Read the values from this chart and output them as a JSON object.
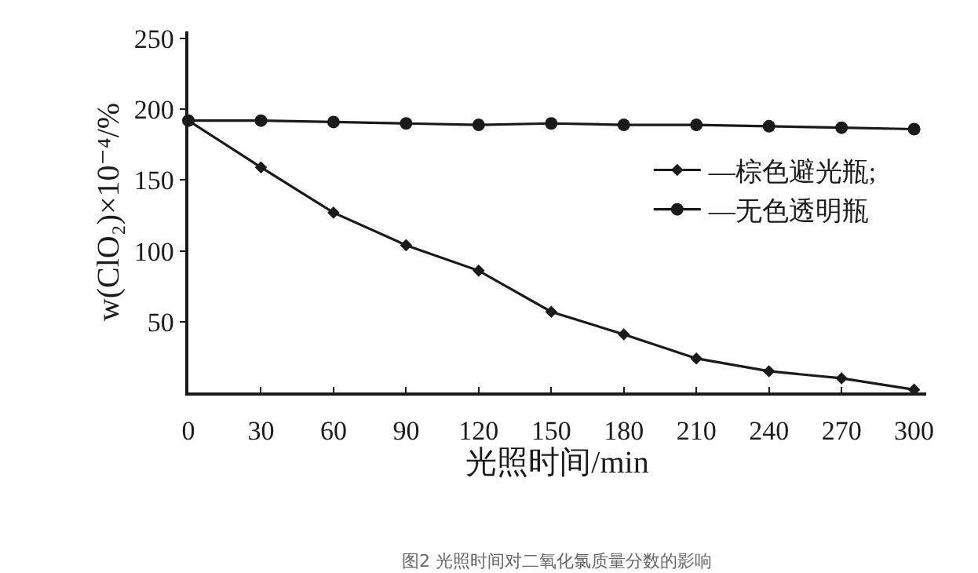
{
  "chart_data": {
    "type": "line",
    "xlabel": "光照时间/min",
    "ylabel": "w(ClO₂)×10⁻⁴/%",
    "x": [
      0,
      30,
      60,
      90,
      120,
      150,
      180,
      210,
      240,
      270,
      300
    ],
    "series": [
      {
        "name": "—棕色避光瓶;",
        "color": "#1a1a1a",
        "marker": "diamond",
        "values": [
          192,
          159,
          127,
          104,
          86,
          57,
          41,
          24,
          15,
          10,
          2
        ]
      },
      {
        "name": "—无色透明瓶",
        "color": "#1a1a1a",
        "marker": "circle",
        "values": [
          192,
          192,
          191,
          190,
          189,
          190,
          189,
          189,
          188,
          187,
          186
        ]
      }
    ],
    "xlim": [
      0,
      305
    ],
    "xticks": [
      0,
      30,
      60,
      90,
      120,
      150,
      180,
      210,
      240,
      270,
      300
    ],
    "ylim": [
      0,
      255
    ],
    "yticks": [
      50,
      100,
      150,
      200,
      250
    ],
    "grid": false,
    "legend": "right",
    "line_style": "solid",
    "annotations": [
      "图2 光照时间对二氧化氯质量分数的影响"
    ]
  }
}
